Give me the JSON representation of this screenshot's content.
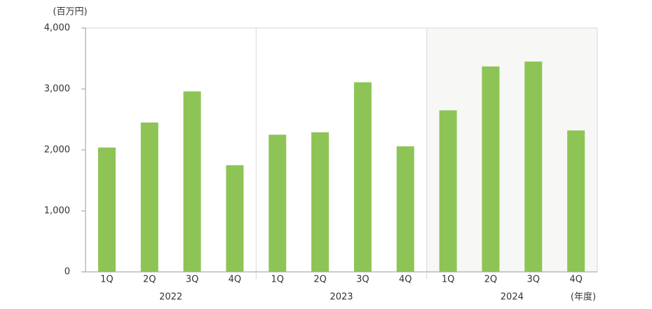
{
  "chart_data": {
    "type": "bar",
    "y_unit": "(百万円)",
    "x_unit": "(年度)",
    "categories": [
      "1Q",
      "2Q",
      "3Q",
      "4Q",
      "1Q",
      "2Q",
      "3Q",
      "4Q",
      "1Q",
      "2Q",
      "3Q",
      "4Q"
    ],
    "groups": [
      "2022",
      "2023",
      "2024"
    ],
    "highlight": "2024",
    "values": [
      2040,
      2450,
      2960,
      1750,
      2250,
      2290,
      3110,
      2060,
      2650,
      3370,
      3450,
      2320
    ],
    "color": "#8dc455",
    "ylim": [
      0,
      4000
    ],
    "yticks": [
      0,
      {
        "value": 1000,
        "label": "1,000"
      },
      {
        "value": 2000,
        "label": "2,000"
      },
      {
        "value": 3000,
        "label": "3,000"
      },
      {
        "value": 4000,
        "label": "4,000"
      }
    ],
    "grid": false
  }
}
